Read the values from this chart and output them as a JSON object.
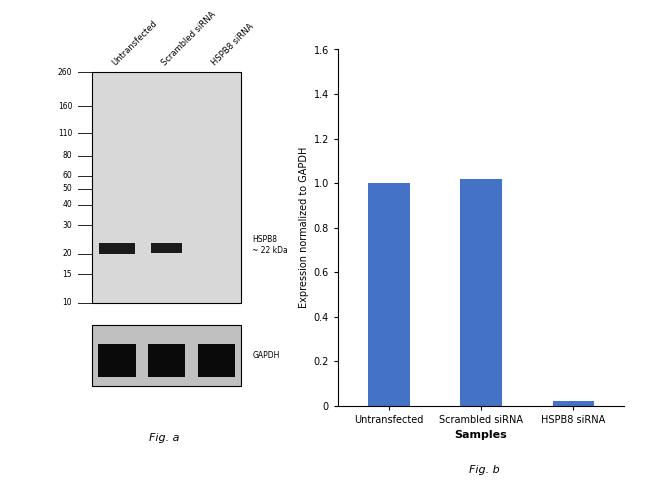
{
  "fig_a": {
    "ladder_labels": [
      "260",
      "160",
      "110",
      "80",
      "60",
      "50",
      "40",
      "30",
      "20",
      "15",
      "10"
    ],
    "ladder_positions": [
      260,
      160,
      110,
      80,
      60,
      50,
      40,
      30,
      20,
      15,
      10
    ],
    "lane_labels": [
      "Untransfected",
      "Scrambled siRNA",
      "HSPB8 siRNA"
    ],
    "band_annotation": "HSPB8\n~ 22 kDa",
    "gapdh_label": "GAPDH",
    "fig_label": "Fig. a",
    "wb_bg_color": "#d8d8d8",
    "gapdh_bg_color": "#c0c0c0"
  },
  "fig_b": {
    "categories": [
      "Untransfected",
      "Scrambled siRNA",
      "HSPB8 siRNA"
    ],
    "values": [
      1.0,
      1.02,
      0.02
    ],
    "bar_color": "#4472c4",
    "ylabel": "Expression normalized to GAPDH",
    "xlabel": "Samples",
    "ylim": [
      0,
      1.6
    ],
    "yticks": [
      0,
      0.2,
      0.4,
      0.6,
      0.8,
      1.0,
      1.2,
      1.4,
      1.6
    ],
    "fig_label": "Fig. b",
    "background_color": "#ffffff"
  }
}
